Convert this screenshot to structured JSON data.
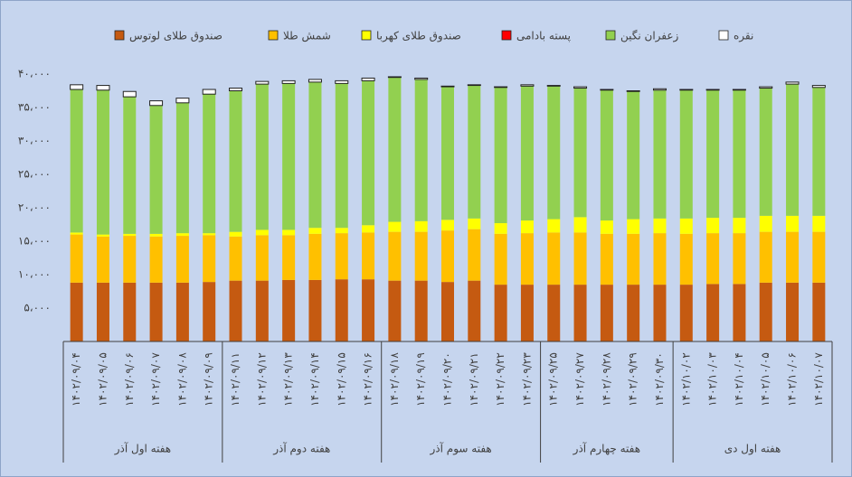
{
  "chart_data": {
    "type": "stacked-bar",
    "groups": [
      {
        "name": "هفته اول آذر",
        "categories": [
          "۱۴۰۲/۰۹/۰۴",
          "۱۴۰۲/۰۹/۰۵",
          "۱۴۰۲/۰۹/۰۶",
          "۱۴۰۲/۰۹/۰۷",
          "۱۴۰۲/۰۹/۰۸",
          "۱۴۰۲/۰۹/۰۹"
        ]
      },
      {
        "name": "هفته دوم آذر",
        "categories": [
          "۱۴۰۲/۰۹/۱۱",
          "۱۴۰۲/۰۹/۱۲",
          "۱۴۰۲/۰۹/۱۳",
          "۱۴۰۲/۰۹/۱۴",
          "۱۴۰۲/۰۹/۱۵",
          "۱۴۰۲/۰۹/۱۶"
        ]
      },
      {
        "name": "هفته سوم آذر",
        "categories": [
          "۱۴۰۲/۰۹/۱۸",
          "۱۴۰۲/۰۹/۱۹",
          "۱۴۰۲/۰۹/۲۰",
          "۱۴۰۲/۰۹/۲۱",
          "۱۴۰۲/۰۹/۲۲",
          "۱۴۰۲/۰۹/۲۳"
        ]
      },
      {
        "name": "هفته چهارم آذر",
        "categories": [
          "۱۴۰۲/۰۹/۲۵",
          "۱۴۰۲/۰۹/۲۷",
          "۱۴۰۲/۰۹/۲۸",
          "۱۴۰۲/۰۹/۲۹",
          "۱۴۰۲/۰۹/۳۰"
        ]
      },
      {
        "name": "هفته اول دی",
        "categories": [
          "۱۴۰۲/۱۰/۰۲",
          "۱۴۰۲/۱۰/۰۳",
          "۱۴۰۲/۱۰/۰۴",
          "۱۴۰۲/۱۰/۰۵",
          "۱۴۰۲/۱۰/۰۶",
          "۱۴۰۲/۱۰/۰۷"
        ]
      }
    ],
    "series": [
      {
        "name": "صندوق طلای لوتوس",
        "color": "#c55a11",
        "values": [
          8800,
          8800,
          8800,
          8800,
          8800,
          8900,
          9100,
          9100,
          9200,
          9200,
          9300,
          9300,
          9100,
          9100,
          8900,
          9100,
          8500,
          8500,
          8500,
          8500,
          8500,
          8500,
          8500,
          8500,
          8600,
          8600,
          8800,
          8800,
          8800
        ]
      },
      {
        "name": "شمش طلا",
        "color": "#ffc000",
        "values": [
          7200,
          6900,
          7000,
          6900,
          7000,
          7000,
          6600,
          6800,
          6700,
          6900,
          6900,
          7000,
          7300,
          7300,
          7700,
          7700,
          7600,
          7700,
          7800,
          7800,
          7600,
          7600,
          7700,
          7600,
          7600,
          7600,
          7600,
          7600,
          7600
        ]
      },
      {
        "name": "صندوق طلای کهربا",
        "color": "#ffff00",
        "values": [
          300,
          300,
          300,
          400,
          400,
          300,
          700,
          800,
          800,
          900,
          800,
          1100,
          1500,
          1600,
          1600,
          1600,
          1600,
          1900,
          2000,
          2300,
          2000,
          2200,
          2200,
          2300,
          2300,
          2300,
          2400,
          2400,
          2400
        ]
      },
      {
        "name": "پسته بادامی",
        "color": "#ff0000",
        "values": [
          0,
          0,
          0,
          0,
          0,
          0,
          0,
          0,
          0,
          0,
          0,
          0,
          0,
          0,
          0,
          0,
          0,
          0,
          0,
          0,
          0,
          0,
          0,
          0,
          0,
          0,
          0,
          0,
          0
        ]
      },
      {
        "name": "زعفران نگین",
        "color": "#92d050",
        "values": [
          21400,
          21600,
          20500,
          19200,
          19500,
          20800,
          21100,
          21800,
          21900,
          21800,
          21600,
          21600,
          21600,
          21200,
          19900,
          19900,
          20300,
          20100,
          19900,
          19300,
          19500,
          19100,
          19200,
          19200,
          19100,
          19100,
          19100,
          19700,
          19200
        ]
      },
      {
        "name": "نقره",
        "color": "#ffffff",
        "values": [
          700,
          700,
          800,
          700,
          700,
          700,
          400,
          400,
          400,
          400,
          400,
          400,
          100,
          200,
          100,
          100,
          100,
          200,
          100,
          200,
          100,
          100,
          200,
          100,
          100,
          100,
          200,
          300,
          300
        ]
      }
    ],
    "ylim": [
      0,
      40000
    ],
    "yticks": [
      {
        "value": 5000,
        "label": "۵،۰۰۰"
      },
      {
        "value": 10000,
        "label": "۱۰،۰۰۰"
      },
      {
        "value": 15000,
        "label": "۱۵،۰۰۰"
      },
      {
        "value": 20000,
        "label": "۲۰،۰۰۰"
      },
      {
        "value": 25000,
        "label": "۲۵،۰۰۰"
      },
      {
        "value": 30000,
        "label": "۳۰،۰۰۰"
      },
      {
        "value": 35000,
        "label": "۳۵،۰۰۰"
      },
      {
        "value": 40000,
        "label": "۴۰،۰۰۰"
      }
    ],
    "legend": "top"
  }
}
